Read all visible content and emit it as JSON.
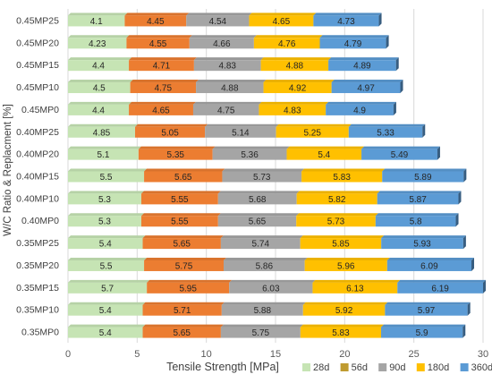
{
  "chart_data": {
    "type": "bar",
    "orientation": "horizontal",
    "stacked": true,
    "xlabel": "Tensile Strength [MPa]",
    "ylabel": "W/C Ratio & Replacment [%]",
    "xlim": [
      0,
      30
    ],
    "xticks": [
      0,
      5,
      10,
      15,
      20,
      25,
      30
    ],
    "grid": true,
    "legend_position": "bottom-right",
    "categories": [
      "0.45MP25",
      "0.45MP20",
      "0.45MP15",
      "0.45MP10",
      "0.45MP0",
      "0.40MP25",
      "0.40MP20",
      "0.40MP15",
      "0.40MP10",
      "0.40MP0",
      "0.35MP25",
      "0.35MP20",
      "0.35MP15",
      "0.35MP10",
      "0.35MP0"
    ],
    "series": [
      {
        "name": "28d",
        "color": "#c6e4b4",
        "values": [
          4.1,
          4.23,
          4.4,
          4.5,
          4.4,
          4.85,
          5.1,
          5.5,
          5.3,
          5.3,
          5.4,
          5.5,
          5.7,
          5.4,
          5.4
        ]
      },
      {
        "name": "56d",
        "color": "#ec7d31",
        "values": [
          4.45,
          4.55,
          4.71,
          4.75,
          4.65,
          5.05,
          5.35,
          5.65,
          5.55,
          5.55,
          5.65,
          5.75,
          5.95,
          5.71,
          5.65
        ]
      },
      {
        "name": "90d",
        "color": "#a5a5a5",
        "values": [
          4.54,
          4.66,
          4.83,
          4.88,
          4.75,
          5.14,
          5.36,
          5.73,
          5.68,
          5.65,
          5.74,
          5.86,
          6.03,
          5.88,
          5.75
        ]
      },
      {
        "name": "180d",
        "color": "#ffc000",
        "values": [
          4.65,
          4.76,
          4.88,
          4.92,
          4.83,
          5.25,
          5.4,
          5.83,
          5.82,
          5.73,
          5.85,
          5.96,
          6.13,
          5.92,
          5.83
        ]
      },
      {
        "name": "360d",
        "color": "#5b9bd5",
        "values": [
          4.73,
          4.79,
          4.89,
          4.97,
          4.9,
          5.33,
          5.49,
          5.89,
          5.87,
          5.8,
          5.93,
          6.09,
          6.19,
          5.97,
          5.9
        ]
      }
    ]
  },
  "legend_swatch_colors": {
    "28d": "#c6e4b4",
    "56d": "#bf9b30",
    "90d": "#a5a5a5",
    "180d": "#ffc000",
    "360d": "#5b9bd5"
  }
}
